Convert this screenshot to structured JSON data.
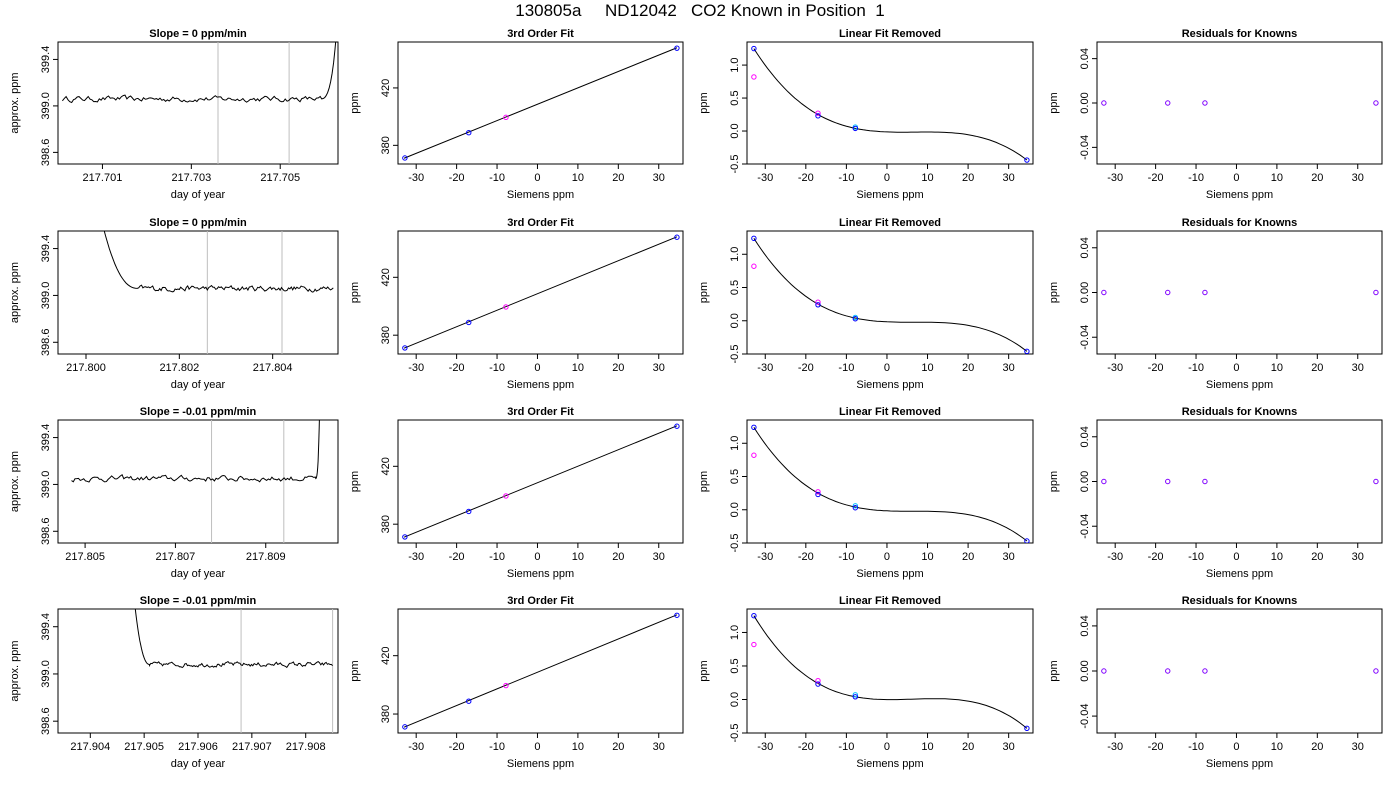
{
  "page": {
    "title": "130805a     ND12042   CO2 Known in Position  1"
  },
  "colors": {
    "axis": "#000000",
    "trace": "#000000",
    "fit_line": "#000000",
    "vline": "#bebebe",
    "point_blue": "#0000ff",
    "point_magenta": "#ff00ff",
    "point_cyan": "#00bfff",
    "point_purple": "#8000ff"
  },
  "chart_data": [
    {
      "row": 1,
      "type": "line",
      "title": "Slope =  0  ppm/min",
      "xlabel": "day of year",
      "ylabel": "approx. ppm",
      "xlim": [
        217.7,
        217.7063
      ],
      "ylim": [
        398.5,
        399.55
      ],
      "x_ticks": [
        "217.701",
        "217.703",
        "217.705"
      ],
      "x_tick_values": [
        217.701,
        217.703,
        217.705
      ],
      "y_ticks": [
        "398.6",
        "399.0",
        "399.4"
      ],
      "y_tick_values": [
        398.6,
        399.0,
        399.4
      ],
      "vlines": [
        217.7036,
        217.7052
      ],
      "trace": {
        "x_start": 217.7001,
        "x_end": 217.7063,
        "mean": 399.06,
        "noise": 0.025,
        "lead_in": null,
        "rise_at": 217.7059,
        "rise_to": 399.6
      }
    },
    {
      "type": "scatter",
      "title": "3rd Order Fit",
      "xlabel": "Siemens ppm",
      "ylabel": "ppm",
      "xlim": [
        -34.5,
        36
      ],
      "ylim": [
        367,
        452
      ],
      "x_ticks": [
        "-30",
        "-20",
        "-10",
        "0",
        "10",
        "20",
        "30"
      ],
      "x_tick_values": [
        -30,
        -20,
        -10,
        0,
        10,
        20,
        30
      ],
      "y_ticks": [
        "380",
        "420"
      ],
      "y_tick_values": [
        380,
        420
      ],
      "line": [
        [
          -33,
          371
        ],
        [
          34.5,
          448
        ]
      ],
      "points": [
        {
          "x": -32.8,
          "y": 371.2,
          "color": "blue"
        },
        {
          "x": -17,
          "y": 388.8,
          "color": "blue"
        },
        {
          "x": -7.8,
          "y": 399.5,
          "color": "magenta"
        },
        {
          "x": 34.5,
          "y": 447.7,
          "color": "blue"
        }
      ]
    },
    {
      "type": "scatter",
      "title": "Linear Fit Removed",
      "xlabel": "Siemens ppm",
      "ylabel": "ppm",
      "xlim": [
        -34.5,
        36
      ],
      "ylim": [
        -0.5,
        1.35
      ],
      "x_ticks": [
        "-30",
        "-20",
        "-10",
        "0",
        "10",
        "20",
        "30"
      ],
      "x_tick_values": [
        -30,
        -20,
        -10,
        0,
        10,
        20,
        30
      ],
      "y_ticks": [
        "-0.5",
        "0.0",
        "0.5",
        "1.0"
      ],
      "y_tick_values": [
        -0.5,
        0.0,
        0.5,
        1.0
      ],
      "curve_points": [
        [
          -32.8,
          1.25
        ],
        [
          -17,
          0.25
        ],
        [
          -7.8,
          0.04
        ],
        [
          34.5,
          -0.44
        ]
      ],
      "points": [
        {
          "x": -32.8,
          "y": 1.25,
          "color": "blue"
        },
        {
          "x": -32.8,
          "y": 0.82,
          "color": "magenta"
        },
        {
          "x": -17,
          "y": 0.27,
          "color": "magenta"
        },
        {
          "x": -17,
          "y": 0.23,
          "color": "blue"
        },
        {
          "x": -7.8,
          "y": 0.06,
          "color": "cyan"
        },
        {
          "x": -7.8,
          "y": 0.04,
          "color": "blue"
        },
        {
          "x": 34.5,
          "y": -0.44,
          "color": "blue"
        }
      ]
    },
    {
      "type": "scatter",
      "title": "Residuals for Knowns",
      "xlabel": "Siemens ppm",
      "ylabel": "ppm",
      "xlim": [
        -34.5,
        36
      ],
      "ylim": [
        -0.055,
        0.055
      ],
      "x_ticks": [
        "-30",
        "-20",
        "-10",
        "0",
        "10",
        "20",
        "30"
      ],
      "x_tick_values": [
        -30,
        -20,
        -10,
        0,
        10,
        20,
        30
      ],
      "y_ticks": [
        "-0.04",
        "0.00",
        "0.04"
      ],
      "y_tick_values": [
        -0.04,
        0.0,
        0.04
      ],
      "points": [
        {
          "x": -32.8,
          "y": 0.0,
          "color": "purple"
        },
        {
          "x": -17,
          "y": 0.0,
          "color": "purple"
        },
        {
          "x": -7.8,
          "y": 0.0,
          "color": "purple"
        },
        {
          "x": 34.5,
          "y": 0.0,
          "color": "purple"
        }
      ]
    },
    {
      "row": 2,
      "type": "line",
      "title": "Slope =  0  ppm/min",
      "xlabel": "day of year",
      "ylabel": "approx. ppm",
      "xlim": [
        217.7994,
        217.8054
      ],
      "ylim": [
        398.5,
        399.55
      ],
      "x_ticks": [
        "217.800",
        "217.802",
        "217.804"
      ],
      "x_tick_values": [
        217.8,
        217.802,
        217.804
      ],
      "y_ticks": [
        "398.6",
        "399.0",
        "399.4"
      ],
      "y_tick_values": [
        398.6,
        399.0,
        399.4
      ],
      "vlines": [
        217.8026,
        217.8042
      ],
      "trace": {
        "x_start": 217.8003,
        "x_end": 217.8053,
        "mean": 399.06,
        "noise": 0.025,
        "lead_in": {
          "x_end": 217.8011,
          "y_start": 399.6
        },
        "rise_at": null,
        "rise_to": null
      }
    },
    {
      "type": "scatter",
      "title": "3rd Order Fit",
      "xlabel": "Siemens ppm",
      "ylabel": "ppm",
      "xlim": [
        -34.5,
        36
      ],
      "ylim": [
        367,
        452
      ],
      "x_ticks": [
        "-30",
        "-20",
        "-10",
        "0",
        "10",
        "20",
        "30"
      ],
      "x_tick_values": [
        -30,
        -20,
        -10,
        0,
        10,
        20,
        30
      ],
      "y_ticks": [
        "380",
        "420"
      ],
      "y_tick_values": [
        380,
        420
      ],
      "line": [
        [
          -33,
          371
        ],
        [
          34.5,
          448
        ]
      ],
      "points": [
        {
          "x": -32.8,
          "y": 371.2,
          "color": "blue"
        },
        {
          "x": -17,
          "y": 388.8,
          "color": "blue"
        },
        {
          "x": -7.8,
          "y": 399.5,
          "color": "magenta"
        },
        {
          "x": 34.5,
          "y": 447.7,
          "color": "blue"
        }
      ]
    },
    {
      "type": "scatter",
      "title": "Linear Fit Removed",
      "xlabel": "Siemens ppm",
      "ylabel": "ppm",
      "xlim": [
        -34.5,
        36
      ],
      "ylim": [
        -0.5,
        1.35
      ],
      "x_ticks": [
        "-30",
        "-20",
        "-10",
        "0",
        "10",
        "20",
        "30"
      ],
      "x_tick_values": [
        -30,
        -20,
        -10,
        0,
        10,
        20,
        30
      ],
      "y_ticks": [
        "-0.5",
        "0.0",
        "0.5",
        "1.0"
      ],
      "y_tick_values": [
        -0.5,
        0.0,
        0.5,
        1.0
      ],
      "curve_points": [
        [
          -32.8,
          1.24
        ],
        [
          -17,
          0.25
        ],
        [
          -7.8,
          0.04
        ],
        [
          34.5,
          -0.46
        ]
      ],
      "points": [
        {
          "x": -32.8,
          "y": 1.24,
          "color": "blue"
        },
        {
          "x": -32.8,
          "y": 0.82,
          "color": "magenta"
        },
        {
          "x": -17,
          "y": 0.28,
          "color": "magenta"
        },
        {
          "x": -17,
          "y": 0.24,
          "color": "blue"
        },
        {
          "x": -7.8,
          "y": 0.05,
          "color": "cyan"
        },
        {
          "x": -7.8,
          "y": 0.03,
          "color": "blue"
        },
        {
          "x": 34.5,
          "y": -0.46,
          "color": "blue"
        }
      ]
    },
    {
      "type": "scatter",
      "title": "Residuals for Knowns",
      "xlabel": "Siemens ppm",
      "ylabel": "ppm",
      "xlim": [
        -34.5,
        36
      ],
      "ylim": [
        -0.055,
        0.055
      ],
      "x_ticks": [
        "-30",
        "-20",
        "-10",
        "0",
        "10",
        "20",
        "30"
      ],
      "x_tick_values": [
        -30,
        -20,
        -10,
        0,
        10,
        20,
        30
      ],
      "y_ticks": [
        "-0.04",
        "0.00",
        "0.04"
      ],
      "y_tick_values": [
        -0.04,
        0.0,
        0.04
      ],
      "points": [
        {
          "x": -32.8,
          "y": 0.0,
          "color": "purple"
        },
        {
          "x": -17,
          "y": 0.0,
          "color": "purple"
        },
        {
          "x": -7.8,
          "y": 0.0,
          "color": "purple"
        },
        {
          "x": 34.5,
          "y": 0.0,
          "color": "purple"
        }
      ]
    },
    {
      "row": 3,
      "type": "line",
      "title": "Slope =  -0.01  ppm/min",
      "xlabel": "day of year",
      "ylabel": "approx. ppm",
      "xlim": [
        217.8044,
        217.8106
      ],
      "ylim": [
        398.5,
        399.55
      ],
      "x_ticks": [
        "217.805",
        "217.807",
        "217.809"
      ],
      "x_tick_values": [
        217.805,
        217.807,
        217.809
      ],
      "y_ticks": [
        "398.6",
        "399.0",
        "399.4"
      ],
      "y_tick_values": [
        398.6,
        399.0,
        399.4
      ],
      "vlines": [
        217.8078,
        217.8094
      ],
      "trace": {
        "x_start": 217.8047,
        "x_end": 217.8102,
        "mean": 399.05,
        "noise": 0.025,
        "lead_in": null,
        "rise_at": 217.8101,
        "rise_to": 399.6
      }
    },
    {
      "type": "scatter",
      "title": "3rd Order Fit",
      "xlabel": "Siemens ppm",
      "ylabel": "ppm",
      "xlim": [
        -34.5,
        36
      ],
      "ylim": [
        367,
        452
      ],
      "x_ticks": [
        "-30",
        "-20",
        "-10",
        "0",
        "10",
        "20",
        "30"
      ],
      "x_tick_values": [
        -30,
        -20,
        -10,
        0,
        10,
        20,
        30
      ],
      "y_ticks": [
        "380",
        "420"
      ],
      "y_tick_values": [
        380,
        420
      ],
      "line": [
        [
          -33,
          371
        ],
        [
          34.5,
          448
        ]
      ],
      "points": [
        {
          "x": -32.8,
          "y": 371.2,
          "color": "blue"
        },
        {
          "x": -17,
          "y": 388.8,
          "color": "blue"
        },
        {
          "x": -7.8,
          "y": 399.5,
          "color": "magenta"
        },
        {
          "x": 34.5,
          "y": 447.7,
          "color": "blue"
        }
      ]
    },
    {
      "type": "scatter",
      "title": "Linear Fit Removed",
      "xlabel": "Siemens ppm",
      "ylabel": "ppm",
      "xlim": [
        -34.5,
        36
      ],
      "ylim": [
        -0.5,
        1.35
      ],
      "x_ticks": [
        "-30",
        "-20",
        "-10",
        "0",
        "10",
        "20",
        "30"
      ],
      "x_tick_values": [
        -30,
        -20,
        -10,
        0,
        10,
        20,
        30
      ],
      "y_ticks": [
        "-0.5",
        "0.0",
        "0.5",
        "1.0"
      ],
      "y_tick_values": [
        -0.5,
        0.0,
        0.5,
        1.0
      ],
      "curve_points": [
        [
          -32.8,
          1.24
        ],
        [
          -17,
          0.25
        ],
        [
          -7.8,
          0.04
        ],
        [
          34.5,
          -0.47
        ]
      ],
      "points": [
        {
          "x": -32.8,
          "y": 1.24,
          "color": "blue"
        },
        {
          "x": -32.8,
          "y": 0.82,
          "color": "magenta"
        },
        {
          "x": -17,
          "y": 0.27,
          "color": "magenta"
        },
        {
          "x": -17,
          "y": 0.23,
          "color": "blue"
        },
        {
          "x": -7.8,
          "y": 0.06,
          "color": "cyan"
        },
        {
          "x": -7.8,
          "y": 0.03,
          "color": "blue"
        },
        {
          "x": 34.5,
          "y": -0.47,
          "color": "blue"
        }
      ]
    },
    {
      "type": "scatter",
      "title": "Residuals for Knowns",
      "xlabel": "Siemens ppm",
      "ylabel": "ppm",
      "xlim": [
        -34.5,
        36
      ],
      "ylim": [
        -0.055,
        0.055
      ],
      "x_ticks": [
        "-30",
        "-20",
        "-10",
        "0",
        "10",
        "20",
        "30"
      ],
      "x_tick_values": [
        -30,
        -20,
        -10,
        0,
        10,
        20,
        30
      ],
      "y_ticks": [
        "-0.04",
        "0.00",
        "0.04"
      ],
      "y_tick_values": [
        -0.04,
        0.0,
        0.04
      ],
      "points": [
        {
          "x": -32.8,
          "y": 0.0,
          "color": "purple"
        },
        {
          "x": -17,
          "y": 0.0,
          "color": "purple"
        },
        {
          "x": -7.8,
          "y": 0.0,
          "color": "purple"
        },
        {
          "x": 34.5,
          "y": 0.0,
          "color": "purple"
        }
      ]
    },
    {
      "row": 4,
      "type": "line",
      "title": "Slope =  -0.01  ppm/min",
      "xlabel": "day of year",
      "ylabel": "approx. ppm",
      "xlim": [
        217.9034,
        217.9086
      ],
      "ylim": [
        398.5,
        399.55
      ],
      "x_ticks": [
        "217.904",
        "217.905",
        "217.906",
        "217.907",
        "217.908"
      ],
      "x_tick_values": [
        217.904,
        217.905,
        217.906,
        217.907,
        217.908
      ],
      "y_ticks": [
        "398.6",
        "399.0",
        "399.4"
      ],
      "y_tick_values": [
        398.6,
        399.0,
        399.4
      ],
      "vlines": [
        217.9068,
        217.9085
      ],
      "trace": {
        "x_start": 217.9048,
        "x_end": 217.9085,
        "mean": 399.08,
        "noise": 0.02,
        "lead_in": {
          "x_end": 217.9051,
          "y_start": 399.6
        },
        "rise_at": null,
        "rise_to": null
      }
    },
    {
      "type": "scatter",
      "title": "3rd Order Fit",
      "xlabel": "Siemens ppm",
      "ylabel": "ppm",
      "xlim": [
        -34.5,
        36
      ],
      "ylim": [
        367,
        452
      ],
      "x_ticks": [
        "-30",
        "-20",
        "-10",
        "0",
        "10",
        "20",
        "30"
      ],
      "x_tick_values": [
        -30,
        -20,
        -10,
        0,
        10,
        20,
        30
      ],
      "y_ticks": [
        "380",
        "420"
      ],
      "y_tick_values": [
        380,
        420
      ],
      "line": [
        [
          -33,
          371
        ],
        [
          34.5,
          448
        ]
      ],
      "points": [
        {
          "x": -32.8,
          "y": 371.2,
          "color": "blue"
        },
        {
          "x": -17,
          "y": 388.8,
          "color": "blue"
        },
        {
          "x": -7.8,
          "y": 399.5,
          "color": "magenta"
        },
        {
          "x": 34.5,
          "y": 447.7,
          "color": "blue"
        }
      ]
    },
    {
      "type": "scatter",
      "title": "Linear Fit Removed",
      "xlabel": "Siemens ppm",
      "ylabel": "ppm",
      "xlim": [
        -34.5,
        36
      ],
      "ylim": [
        -0.5,
        1.35
      ],
      "x_ticks": [
        "-30",
        "-20",
        "-10",
        "0",
        "10",
        "20",
        "30"
      ],
      "x_tick_values": [
        -30,
        -20,
        -10,
        0,
        10,
        20,
        30
      ],
      "y_ticks": [
        "-0.5",
        "0.0",
        "0.5",
        "1.0"
      ],
      "y_tick_values": [
        -0.5,
        0.0,
        0.5,
        1.0
      ],
      "curve_points": [
        [
          -32.8,
          1.25
        ],
        [
          -17,
          0.24
        ],
        [
          -7.8,
          0.04
        ],
        [
          34.5,
          -0.43
        ]
      ],
      "points": [
        {
          "x": -32.8,
          "y": 1.25,
          "color": "blue"
        },
        {
          "x": -32.8,
          "y": 0.82,
          "color": "magenta"
        },
        {
          "x": -17,
          "y": 0.28,
          "color": "magenta"
        },
        {
          "x": -17,
          "y": 0.23,
          "color": "blue"
        },
        {
          "x": -7.8,
          "y": 0.07,
          "color": "cyan"
        },
        {
          "x": -7.8,
          "y": 0.04,
          "color": "blue"
        },
        {
          "x": 34.5,
          "y": -0.43,
          "color": "blue"
        }
      ]
    },
    {
      "type": "scatter",
      "title": "Residuals for Knowns",
      "xlabel": "Siemens ppm",
      "ylabel": "ppm",
      "xlim": [
        -34.5,
        36
      ],
      "ylim": [
        -0.055,
        0.055
      ],
      "x_ticks": [
        "-30",
        "-20",
        "-10",
        "0",
        "10",
        "20",
        "30"
      ],
      "x_tick_values": [
        -30,
        -20,
        -10,
        0,
        10,
        20,
        30
      ],
      "y_ticks": [
        "-0.04",
        "0.00",
        "0.04"
      ],
      "y_tick_values": [
        -0.04,
        0.0,
        0.04
      ],
      "points": [
        {
          "x": -32.8,
          "y": 0.0,
          "color": "purple"
        },
        {
          "x": -17,
          "y": 0.0,
          "color": "purple"
        },
        {
          "x": -7.8,
          "y": 0.0,
          "color": "purple"
        },
        {
          "x": 34.5,
          "y": 0.0,
          "color": "purple"
        }
      ]
    }
  ]
}
